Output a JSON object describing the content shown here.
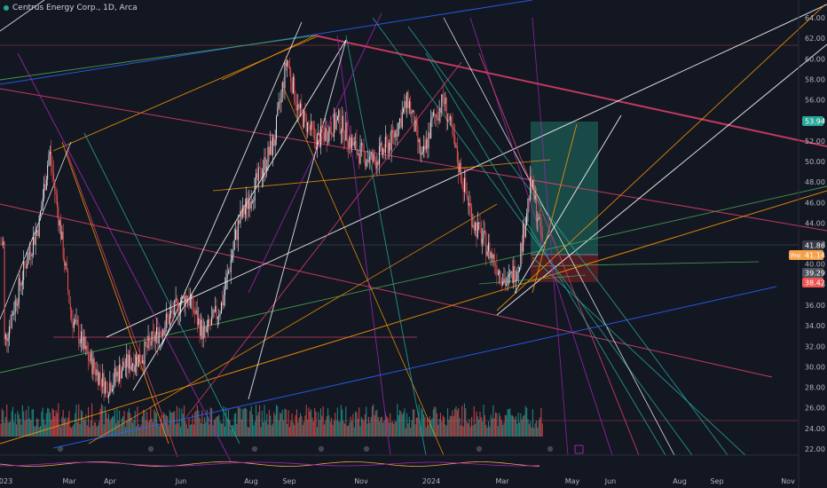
{
  "header": {
    "symbol_title": "Centrus Energy Corp., 1D, Arca"
  },
  "colors": {
    "background": "#131722",
    "up": "#e0e3eb",
    "down": "#ef5350",
    "volume_up": "#26a69a",
    "volume_down": "#ef5350",
    "target_zone": "#1e5c55",
    "stop_zone": "#5c1f24"
  },
  "price_axis": {
    "ticks": [
      "64.00",
      "62.00",
      "60.00",
      "58.00",
      "56.00",
      "54.00",
      "52.00",
      "50.00",
      "48.00",
      "46.00",
      "44.00",
      "42.00",
      "40.00",
      "38.00",
      "36.00",
      "34.00",
      "32.00",
      "30.00",
      "28.00",
      "26.00",
      "24.00",
      "22.00"
    ]
  },
  "time_axis": {
    "ticks": [
      "2023",
      "Mar",
      "Apr",
      "Jun",
      "Aug",
      "Sep",
      "Nov",
      "2024",
      "Mar",
      "May",
      "Jun",
      "Aug",
      "Sep",
      "Nov"
    ]
  },
  "price_tags": {
    "target": "53.94",
    "last": "41.86",
    "entry_prefix": "Pre",
    "entry": "41.14",
    "mid": "39.29",
    "stop": "38.42"
  },
  "chart_data": {
    "type": "candlestick",
    "ylim": [
      21,
      65
    ],
    "price_path": [
      [
        "2023-01-01",
        32
      ],
      [
        "2023-01-20",
        40
      ],
      [
        "2023-02-01",
        44
      ],
      [
        "2023-02-10",
        51
      ],
      [
        "2023-02-20",
        43
      ],
      [
        "2023-03-01",
        35
      ],
      [
        "2023-03-15",
        31
      ],
      [
        "2023-04-01",
        28
      ],
      [
        "2023-04-15",
        30
      ],
      [
        "2023-05-01",
        31
      ],
      [
        "2023-05-20",
        34
      ],
      [
        "2023-06-10",
        37
      ],
      [
        "2023-06-25",
        33
      ],
      [
        "2023-07-10",
        36
      ],
      [
        "2023-07-25",
        44
      ],
      [
        "2023-08-10",
        48
      ],
      [
        "2023-08-25",
        52
      ],
      [
        "2023-09-05",
        60
      ],
      [
        "2023-09-15",
        55
      ],
      [
        "2023-10-01",
        52
      ],
      [
        "2023-10-20",
        54
      ],
      [
        "2023-11-05",
        51
      ],
      [
        "2023-11-20",
        50
      ],
      [
        "2023-12-05",
        52
      ],
      [
        "2023-12-20",
        56
      ],
      [
        "2024-01-01",
        50
      ],
      [
        "2024-01-10",
        54
      ],
      [
        "2024-01-20",
        56
      ],
      [
        "2024-02-01",
        50
      ],
      [
        "2024-02-15",
        44
      ],
      [
        "2024-03-01",
        41
      ],
      [
        "2024-03-15",
        38
      ],
      [
        "2024-03-25",
        40
      ],
      [
        "2024-04-05",
        48
      ],
      [
        "2024-04-15",
        42
      ]
    ],
    "position": {
      "target": 53.94,
      "entry": 41.14,
      "stop": 38.42
    }
  }
}
